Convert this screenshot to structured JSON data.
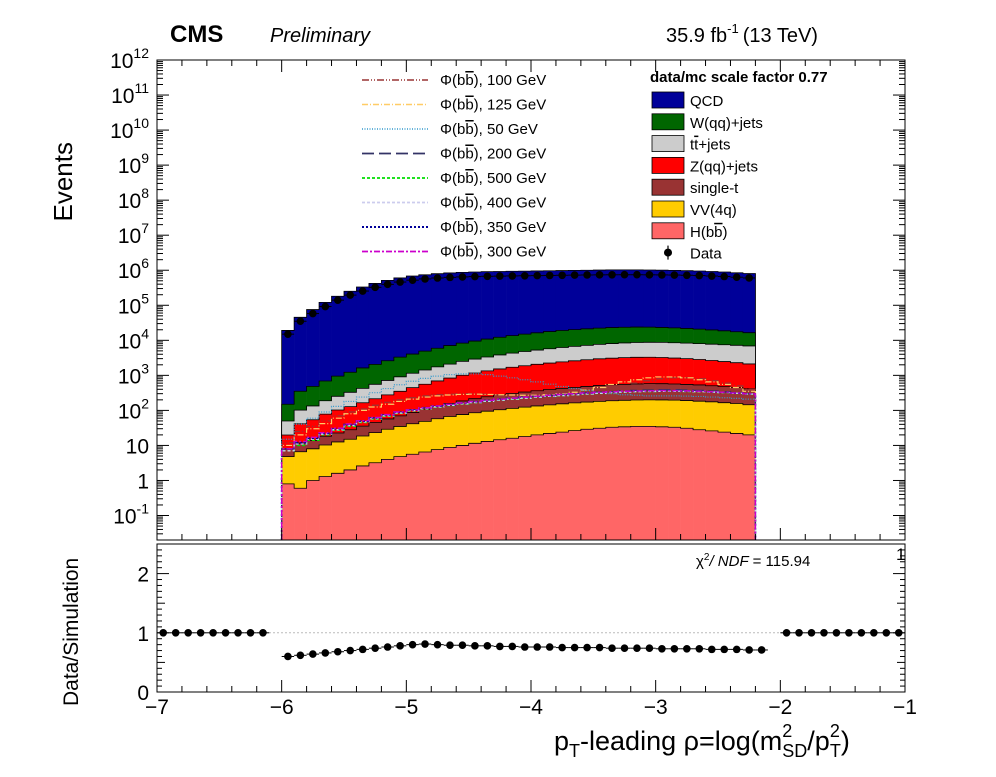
{
  "header": {
    "cms": "CMS",
    "preliminary": "Preliminary",
    "lumi_value": "35.9 fb",
    "lumi_exp": "-1",
    "energy": "(13 TeV)"
  },
  "chart_data": [
    {
      "type": "bar",
      "stacked": true,
      "log_y": true,
      "ylabel": "Events",
      "xlim": [
        -7,
        -1
      ],
      "ylim": [
        0.02,
        1000000000000.0
      ],
      "y_tick_labels": [
        "10^-1",
        "1",
        "10",
        "10^2",
        "10^3",
        "10^4",
        "10^5",
        "10^6",
        "10^7",
        "10^8",
        "10^9",
        "10^10",
        "10^11",
        "10^12"
      ],
      "legend_title": "data/mc scale factor 0.77",
      "legend_placement": "top-right",
      "bins_x_start": -6.0,
      "bin_width": 0.1,
      "series": [
        {
          "name": "H(b̅b)",
          "legend": [
            "H(b",
            "b",
            ")"
          ],
          "color": "#ff6666",
          "values": [
            0.8,
            0.6,
            1.0,
            1.3,
            1.6,
            2.0,
            2.6,
            3.2,
            4.0,
            4.8,
            5.6,
            6.5,
            7.6,
            8.8,
            10,
            11.5,
            13,
            14.5,
            16,
            18,
            20,
            22,
            24,
            26.5,
            29,
            31,
            33,
            34,
            35,
            35,
            34,
            33,
            31,
            28,
            26,
            24,
            22,
            20
          ]
        },
        {
          "name": "VV(4q)",
          "legend": [
            "VV(4q)"
          ],
          "color": "#ffcc00",
          "values": [
            4,
            6,
            7,
            9,
            11,
            13,
            16,
            20,
            25,
            30,
            36,
            42,
            50,
            58,
            66,
            74,
            82,
            90,
            98,
            106,
            114,
            122,
            130,
            137,
            144,
            150,
            155,
            160,
            163,
            165,
            165,
            163,
            160,
            155,
            150,
            142,
            135,
            125
          ]
        },
        {
          "name": "single-t",
          "legend": [
            "single-t"
          ],
          "color": "#993333",
          "values": [
            3,
            5,
            6,
            8,
            10,
            13,
            17,
            22,
            28,
            35,
            45,
            60,
            75,
            90,
            110,
            130,
            150,
            170,
            190,
            210,
            230,
            250,
            270,
            290,
            310,
            330,
            350,
            360,
            370,
            380,
            380,
            370,
            360,
            350,
            330,
            310,
            290,
            270
          ]
        },
        {
          "name": "Z(qq)+jets",
          "legend": [
            "Z(qq)+jets"
          ],
          "color": "#ff0000",
          "values": [
            12,
            30,
            40,
            60,
            80,
            100,
            130,
            170,
            220,
            280,
            360,
            450,
            560,
            680,
            820,
            950,
            1100,
            1250,
            1400,
            1550,
            1700,
            1850,
            2000,
            2150,
            2300,
            2450,
            2550,
            2650,
            2700,
            2700,
            2650,
            2550,
            2450,
            2300,
            2150,
            2000,
            1850,
            1700
          ]
        },
        {
          "name": "t̅t+jets",
          "legend": [
            "t",
            "t",
            "+jets"
          ],
          "color": "#cccccc",
          "values": [
            30,
            60,
            80,
            110,
            150,
            200,
            260,
            340,
            440,
            560,
            700,
            860,
            1050,
            1250,
            1500,
            1750,
            2000,
            2300,
            2600,
            2900,
            3200,
            3500,
            3800,
            4100,
            4400,
            4700,
            5000,
            5200,
            5400,
            5500,
            5500,
            5400,
            5300,
            5200,
            5100,
            5000,
            4900,
            4800
          ]
        },
        {
          "name": "W(qq)+jets",
          "legend": [
            "W(qq)+jets"
          ],
          "color": "#006600",
          "values": [
            100,
            250,
            350,
            500,
            700,
            900,
            1200,
            1500,
            1900,
            2400,
            2900,
            3500,
            4200,
            5000,
            5800,
            6600,
            7500,
            8400,
            9300,
            10200,
            11100,
            12000,
            12800,
            13500,
            14100,
            14600,
            15000,
            15200,
            15200,
            15000,
            14600,
            14100,
            13500,
            12800,
            12000,
            11200,
            10400,
            9600
          ]
        },
        {
          "name": "QCD",
          "legend": [
            "QCD"
          ],
          "color": "#000099",
          "values": [
            19000,
            45000,
            75000,
            120000,
            180000,
            250000,
            330000,
            420000,
            510000,
            600000,
            680000,
            740000,
            790000,
            830000,
            860000,
            880000,
            900000,
            910000,
            920000,
            930000,
            940000,
            950000,
            960000,
            970000,
            980000,
            990000,
            1000000,
            1000000,
            1000000,
            990000,
            980000,
            970000,
            950000,
            930000,
            900000,
            870000,
            830000,
            790000
          ]
        }
      ],
      "data": {
        "name": "Data",
        "values": [
          15000,
          35000,
          58000,
          92000,
          140000,
          195000,
          255000,
          325000,
          395000,
          460000,
          520000,
          565000,
          600000,
          625000,
          645000,
          660000,
          672000,
          680000,
          688000,
          695000,
          702000,
          710000,
          718000,
          726000,
          732000,
          738000,
          742000,
          744000,
          744000,
          740000,
          736000,
          730000,
          718000,
          704000,
          684000,
          662000,
          632000,
          602000
        ]
      },
      "signals": [
        {
          "name": "Φ(b̅b), 100 GeV",
          "label_main": "Φ(b",
          "label_bar": "b",
          "label_rest": "), 100 GeV",
          "color": "#993333",
          "dash": "7,2,1,2,1,2",
          "width": 1.2,
          "values": [
            12,
            25,
            35,
            50,
            70,
            90,
            110,
            140,
            170,
            200,
            230,
            260,
            280,
            290,
            300,
            300,
            290,
            280,
            270,
            260,
            260,
            260,
            270,
            290,
            320,
            360,
            420,
            500,
            600,
            700,
            800,
            850,
            850,
            800,
            700,
            600,
            500,
            400
          ]
        },
        {
          "name": "Φ(b̅b), 125 GeV",
          "label_main": "Φ(b",
          "label_bar": "b",
          "label_rest": "), 125 GeV",
          "color": "#ffcc66",
          "dash": "6,2,1,2",
          "width": 1.2,
          "values": [
            10,
            20,
            30,
            42,
            60,
            80,
            100,
            125,
            150,
            180,
            210,
            240,
            260,
            275,
            285,
            290,
            285,
            280,
            275,
            270,
            270,
            280,
            300,
            330,
            380,
            450,
            550,
            650,
            750,
            850,
            900,
            900,
            850,
            750,
            650,
            550,
            450,
            350
          ]
        },
        {
          "name": "Φ(b̅b), 50 GeV",
          "label_main": "Φ(b",
          "label_bar": "b",
          "label_rest": "), 50 GeV",
          "color": "#3399cc",
          "dash": "1,1.5",
          "width": 1.2,
          "values": [
            15,
            40,
            60,
            90,
            130,
            180,
            240,
            320,
            420,
            540,
            680,
            820,
            950,
            1050,
            1100,
            1100,
            1050,
            950,
            850,
            750,
            650,
            560,
            480,
            420,
            370,
            330,
            300,
            280,
            270,
            260,
            260,
            260,
            255,
            250,
            240,
            230,
            220,
            210
          ]
        },
        {
          "name": "Φ(b̅b), 200 GeV",
          "label_main": "Φ(b",
          "label_bar": "b",
          "label_rest": "), 200 GeV",
          "color": "#333366",
          "dash": "12,5",
          "width": 1.4,
          "values": [
            8,
            12,
            16,
            22,
            30,
            40,
            50,
            62,
            75,
            90,
            105,
            120,
            135,
            150,
            165,
            180,
            195,
            210,
            225,
            240,
            255,
            270,
            285,
            300,
            315,
            330,
            345,
            360,
            370,
            380,
            385,
            385,
            380,
            370,
            355,
            340,
            320,
            300
          ]
        },
        {
          "name": "Φ(b̅b), 500 GeV",
          "label_main": "Φ(b",
          "label_bar": "b",
          "label_rest": "), 500 GeV",
          "color": "#00dd00",
          "dash": "3,2",
          "width": 1.4,
          "values": [
            7,
            10,
            14,
            20,
            27,
            35,
            45,
            56,
            68,
            82,
            96,
            110,
            124,
            138,
            152,
            166,
            180,
            194,
            208,
            222,
            236,
            250,
            264,
            278,
            292,
            306,
            320,
            330,
            340,
            345,
            350,
            350,
            345,
            340,
            330,
            320,
            305,
            290
          ]
        },
        {
          "name": "Φ(b̅b), 400 GeV",
          "label_main": "Φ(b",
          "label_bar": "b",
          "label_rest": "), 400 GeV",
          "color": "#ccccee",
          "dash": "3,2",
          "width": 1.4,
          "values": [
            7,
            11,
            15,
            21,
            28,
            37,
            47,
            58,
            70,
            84,
            98,
            112,
            126,
            140,
            154,
            168,
            182,
            196,
            210,
            224,
            238,
            252,
            266,
            280,
            294,
            308,
            322,
            332,
            342,
            348,
            352,
            352,
            348,
            342,
            332,
            322,
            307,
            292
          ]
        },
        {
          "name": "Φ(b̅b), 350 GeV",
          "label_main": "Φ(b",
          "label_bar": "b",
          "label_rest": "), 350 GeV",
          "color": "#000099",
          "dash": "2,2",
          "width": 1.6,
          "values": [
            8,
            12,
            16,
            22,
            30,
            39,
            49,
            61,
            74,
            88,
            102,
            117,
            132,
            147,
            162,
            177,
            192,
            207,
            222,
            237,
            252,
            267,
            282,
            297,
            312,
            327,
            340,
            350,
            358,
            362,
            365,
            365,
            360,
            352,
            340,
            328,
            312,
            296
          ]
        },
        {
          "name": "Φ(b̅b), 300 GeV",
          "label_main": "Φ(b",
          "label_bar": "b",
          "label_rest": "), 300 GeV",
          "color": "#cc00cc",
          "dash": "6,2,2,2",
          "width": 1.4,
          "values": [
            8,
            13,
            17,
            23,
            31,
            41,
            51,
            63,
            76,
            90,
            104,
            119,
            134,
            149,
            164,
            179,
            194,
            209,
            224,
            239,
            254,
            269,
            284,
            299,
            314,
            329,
            342,
            352,
            360,
            364,
            367,
            367,
            362,
            354,
            342,
            330,
            314,
            298
          ]
        }
      ]
    },
    {
      "type": "scatter",
      "ylabel": "Data/Simulation",
      "xlabel": "p_T-leading ρ=log(m_SD^2/p_T^2)",
      "xlim": [
        -7,
        -1
      ],
      "ylim": [
        0,
        2.5
      ],
      "x_ticks": [
        -7,
        -6,
        -5,
        -4,
        -3,
        -2,
        -1
      ],
      "y_ticks": [
        0,
        1,
        2
      ],
      "reference_line": 1,
      "annotation": {
        "chi_prefix": "χ",
        "chi_sup": "2",
        "ndf": "/ NDF",
        "value": "= 115.94"
      },
      "corner_label": "1",
      "x": [
        -6.95,
        -6.85,
        -6.75,
        -6.65,
        -6.55,
        -6.45,
        -6.35,
        -6.25,
        -6.15,
        -5.95,
        -5.85,
        -5.75,
        -5.65,
        -5.55,
        -5.45,
        -5.35,
        -5.25,
        -5.15,
        -5.05,
        -4.95,
        -4.85,
        -4.75,
        -4.65,
        -4.55,
        -4.45,
        -4.35,
        -4.25,
        -4.15,
        -4.05,
        -3.95,
        -3.85,
        -3.75,
        -3.65,
        -3.55,
        -3.45,
        -3.35,
        -3.25,
        -3.15,
        -3.05,
        -2.95,
        -2.85,
        -2.75,
        -2.65,
        -2.55,
        -2.45,
        -2.35,
        -2.25,
        -2.15,
        -1.95,
        -1.85,
        -1.75,
        -1.65,
        -1.55,
        -1.45,
        -1.35,
        -1.25,
        -1.15,
        -1.05
      ],
      "y": [
        1,
        1,
        1,
        1,
        1,
        1,
        1,
        1,
        1,
        0.6,
        0.62,
        0.64,
        0.66,
        0.68,
        0.7,
        0.72,
        0.74,
        0.76,
        0.78,
        0.8,
        0.81,
        0.8,
        0.79,
        0.79,
        0.78,
        0.78,
        0.77,
        0.77,
        0.76,
        0.76,
        0.76,
        0.75,
        0.75,
        0.75,
        0.75,
        0.74,
        0.74,
        0.74,
        0.74,
        0.73,
        0.73,
        0.73,
        0.73,
        0.72,
        0.72,
        0.72,
        0.71,
        0.71,
        1,
        1,
        1,
        1,
        1,
        1,
        1,
        1,
        1,
        1
      ]
    }
  ]
}
